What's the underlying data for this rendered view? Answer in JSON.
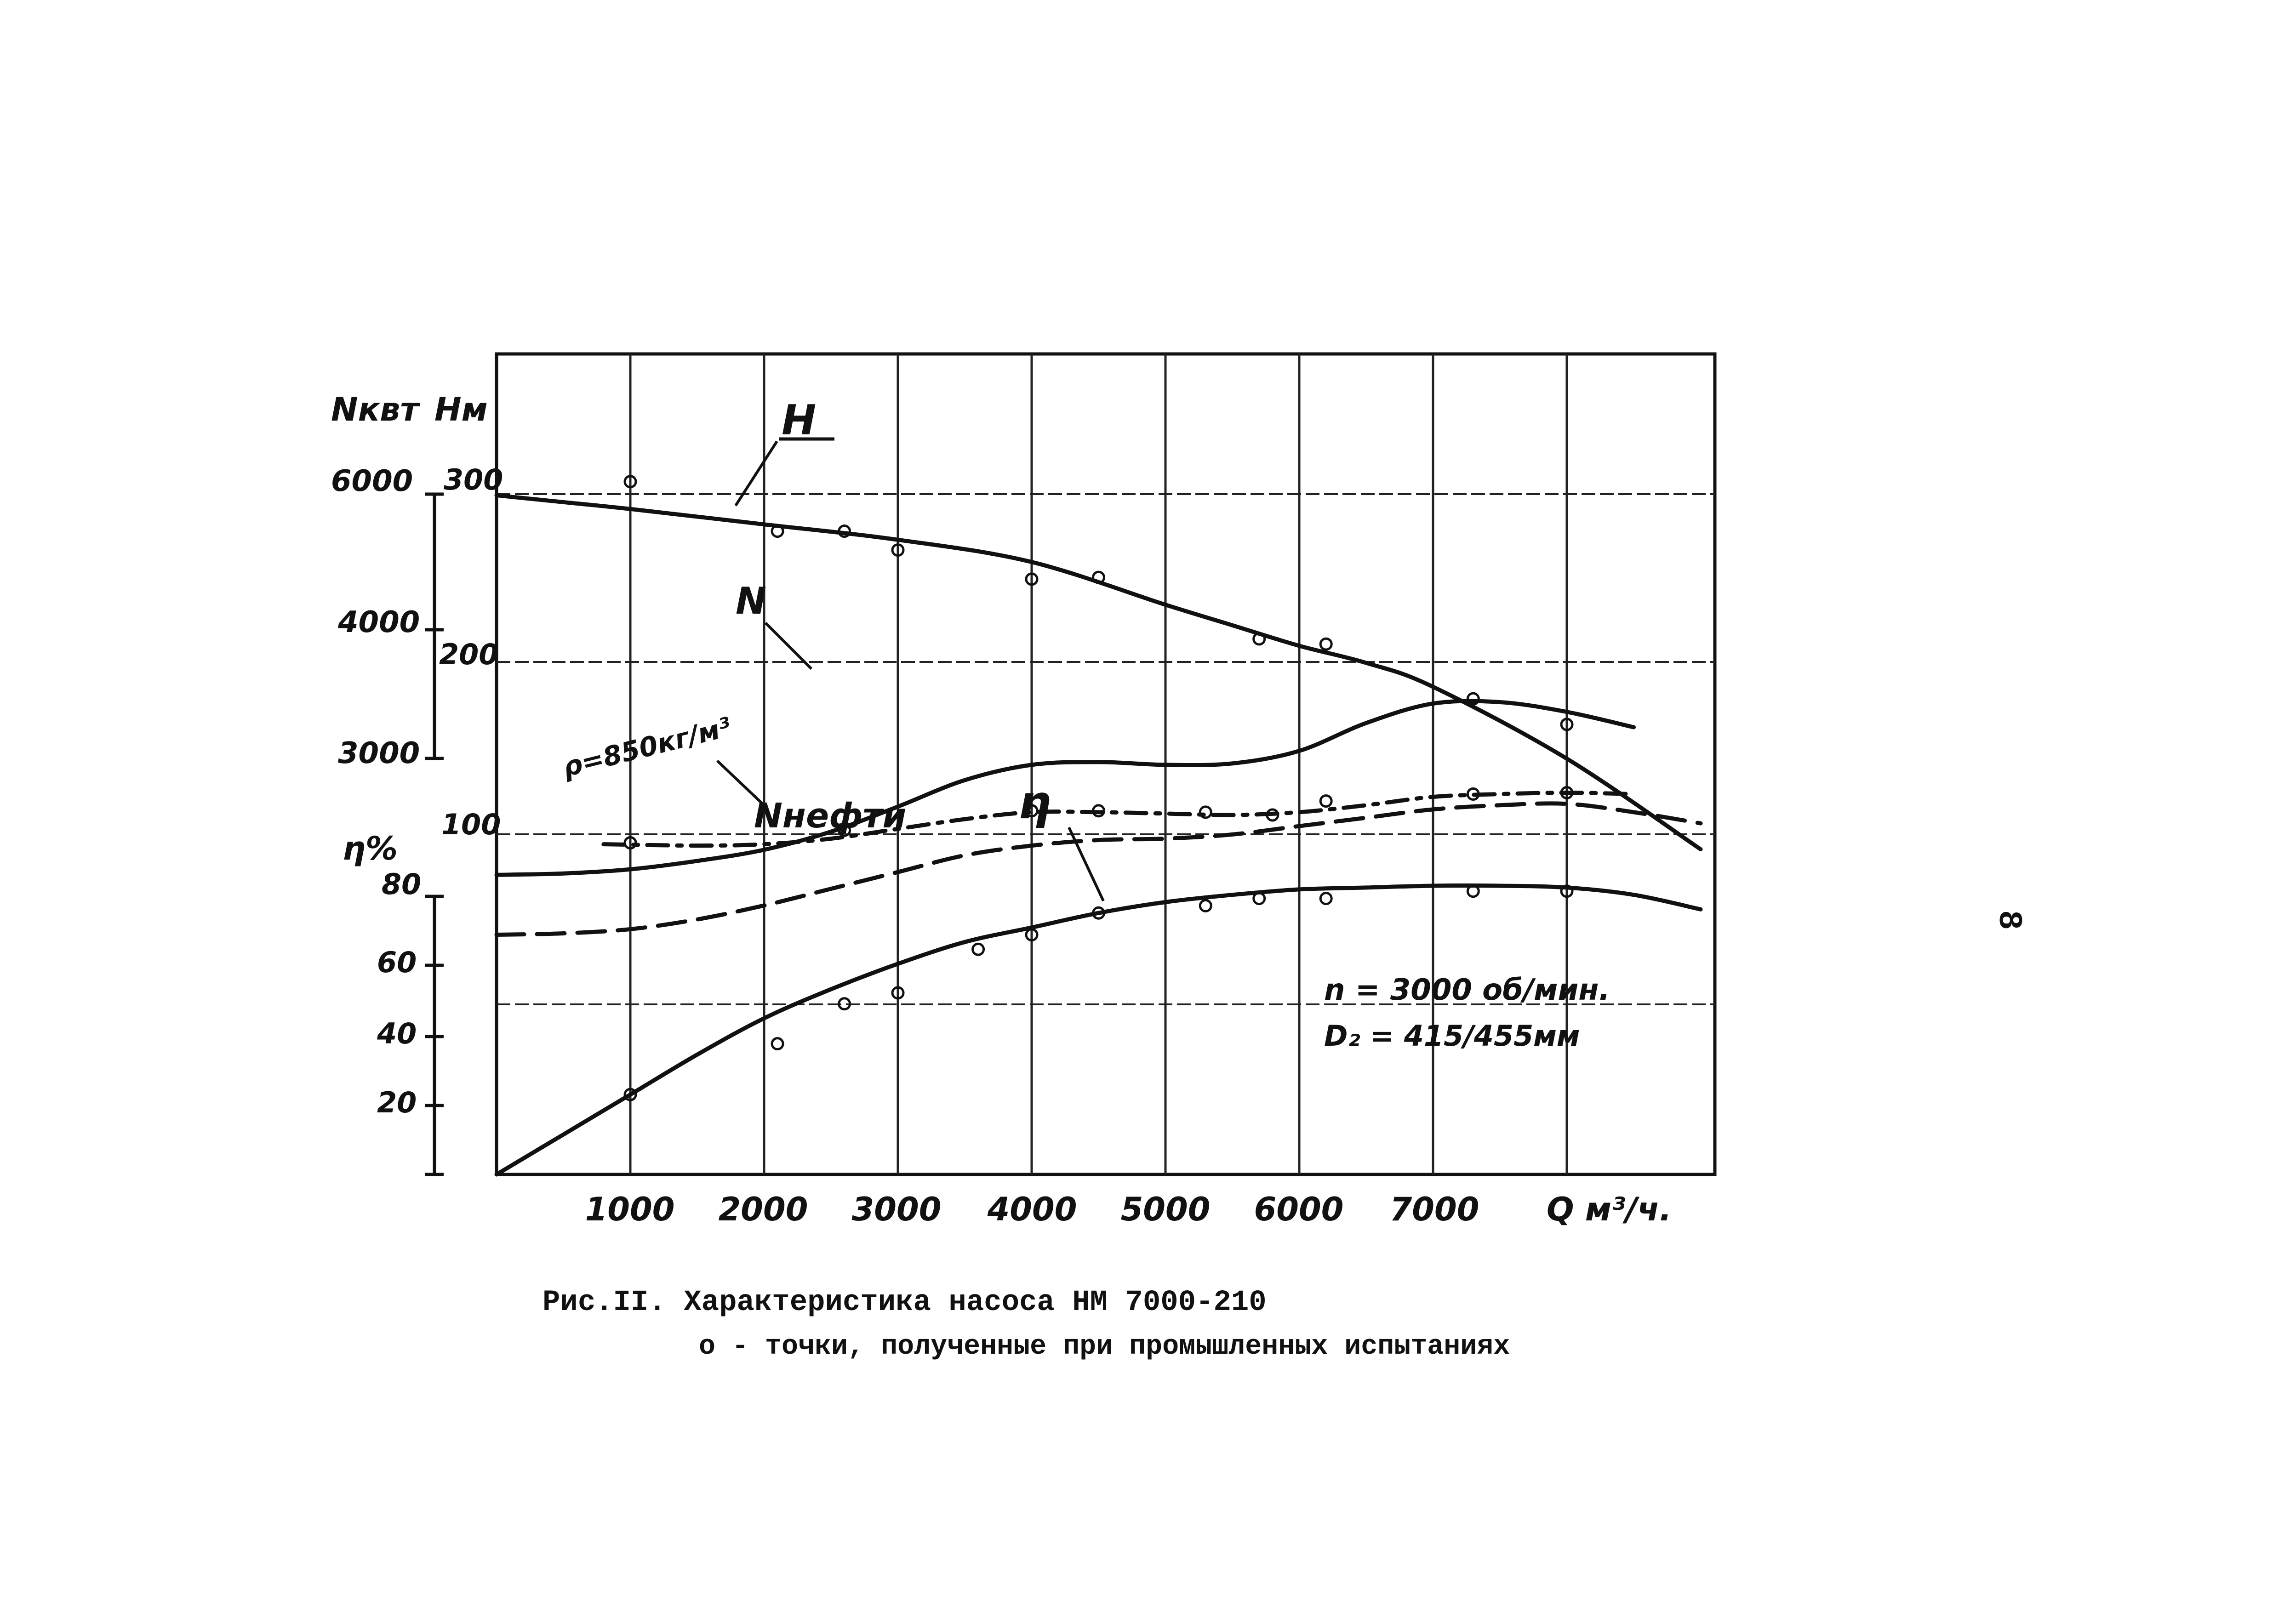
{
  "chart_data": {
    "type": "line",
    "title": "",
    "xlabel": "Q м³/ч.",
    "x_ticks": [
      "1000",
      "2000",
      "3000",
      "4000",
      "5000",
      "6000",
      "7000"
    ],
    "xlim": [
      0,
      9000
    ],
    "axes": {
      "N_kw": {
        "label": "Nквт",
        "ticks": [
          "6000",
          "4000",
          "3000"
        ],
        "range": [
          2000,
          6000
        ]
      },
      "H_m": {
        "label": "Hм",
        "ticks": [
          "300",
          "200",
          "100"
        ],
        "range": [
          0,
          300
        ]
      },
      "eta": {
        "label": "η%",
        "ticks": [
          "80",
          "60",
          "40",
          "20"
        ],
        "range": [
          0,
          80
        ]
      }
    },
    "series": [
      {
        "name": "H",
        "axis": "H_m",
        "style": "solid",
        "x": [
          0,
          500,
          1000,
          2000,
          3000,
          4000,
          5000,
          5500,
          6000,
          6500,
          7000,
          8000,
          9000
        ],
        "y": [
          302,
          298,
          294,
          285,
          276,
          263,
          238,
          226,
          214,
          204,
          190,
          148,
          95
        ]
      },
      {
        "name": "H_measured",
        "axis": "H_m",
        "style": "points",
        "x": [
          1000,
          2100,
          2600,
          3000,
          4000,
          4500,
          5700,
          6200,
          7300,
          8000
        ],
        "y": [
          310,
          281,
          281,
          270,
          253,
          254,
          218,
          215,
          183,
          168
        ]
      },
      {
        "name": "N",
        "axis": "N_kw",
        "style": "solid",
        "x": [
          0,
          500,
          1000,
          1500,
          2000,
          2500,
          3000,
          3500,
          4000,
          4500,
          5000,
          5500,
          6000,
          6500,
          7000,
          7500,
          8000,
          8500
        ],
        "y": [
          3250,
          3260,
          3290,
          3350,
          3430,
          3560,
          3740,
          3930,
          4040,
          4060,
          4040,
          4050,
          4140,
          4340,
          4480,
          4490,
          4420,
          4310
        ]
      },
      {
        "name": "N_dashdot",
        "axis": "N_kw",
        "style": "dashdot",
        "x": [
          800,
          1500,
          2000,
          2500,
          3000,
          3500,
          4000,
          4500,
          5000,
          5500,
          6000,
          6500,
          7000,
          7500,
          8000,
          8500
        ],
        "y": [
          3470,
          3460,
          3470,
          3510,
          3580,
          3650,
          3700,
          3700,
          3690,
          3680,
          3700,
          3750,
          3810,
          3830,
          3840,
          3830
        ]
      },
      {
        "name": "N_measured",
        "axis": "N_kw",
        "style": "points",
        "x": [
          1000,
          2600,
          4000,
          4500,
          5300,
          5800,
          6200,
          7300,
          8000
        ],
        "y": [
          3480,
          3570,
          3710,
          3710,
          3700,
          3680,
          3780,
          3830,
          3840
        ]
      },
      {
        "name": "Nнефти",
        "axis": "N_kw",
        "style": "dashed",
        "x": [
          0,
          500,
          1000,
          1500,
          2000,
          2500,
          3000,
          3500,
          4000,
          4500,
          5000,
          5500,
          6000,
          6500,
          7000,
          7500,
          8000,
          8500,
          9000
        ],
        "y": [
          2820,
          2830,
          2860,
          2930,
          3030,
          3150,
          3270,
          3390,
          3460,
          3500,
          3510,
          3540,
          3600,
          3660,
          3720,
          3750,
          3760,
          3700,
          3620
        ]
      },
      {
        "name": "η",
        "axis": "eta",
        "style": "solid",
        "x": [
          0,
          500,
          1000,
          1500,
          2000,
          2500,
          3000,
          3500,
          4000,
          4500,
          5000,
          5500,
          6000,
          6500,
          7000,
          7500,
          8000,
          8500,
          9000
        ],
        "y": [
          0,
          11,
          22,
          33,
          43,
          51,
          58,
          64,
          68,
          72,
          75,
          77,
          78.5,
          79,
          79.5,
          79.5,
          79,
          77,
          73
        ]
      },
      {
        "name": "η_measured",
        "axis": "eta",
        "style": "points",
        "x": [
          1000,
          2100,
          2600,
          3000,
          3600,
          4000,
          4500,
          5300,
          5700,
          6200,
          7300,
          8000
        ],
        "y": [
          22,
          36,
          47,
          50,
          62,
          66,
          72,
          74,
          76,
          76,
          78,
          78
        ]
      }
    ],
    "annotations": [
      "H",
      "N",
      "Nнефти",
      "η",
      "ρ=850кг/м³",
      "n = 3000 об/мин.",
      "D₂ = 415/455мм"
    ],
    "grid": true,
    "legend": "none"
  },
  "caption": {
    "line1": "Рис.II. Характеристика насоса НМ 7000-210",
    "line2": "о - точки, полученные при промышленных испытаниях"
  },
  "page_number": "8"
}
